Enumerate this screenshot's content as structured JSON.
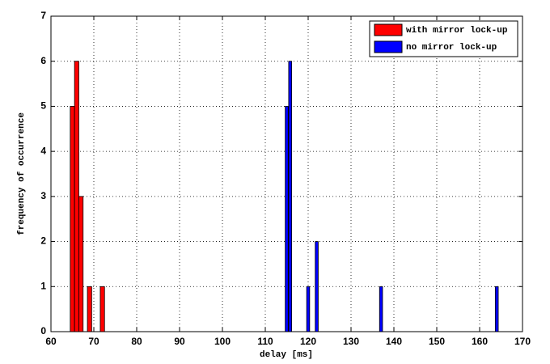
{
  "chart_data": {
    "type": "bar",
    "xlabel": "delay [ms]",
    "ylabel": "frequency of occurrence",
    "xlim": [
      60,
      170
    ],
    "xticks": [
      60,
      70,
      80,
      90,
      100,
      110,
      120,
      130,
      140,
      150,
      160,
      170
    ],
    "ylim": [
      0,
      7
    ],
    "yticks": [
      0,
      1,
      2,
      3,
      4,
      5,
      6,
      7
    ],
    "grid": true,
    "legend": "upper right",
    "series": [
      {
        "name": "with mirror lock-up",
        "color": "#ff0000",
        "x": [
          65,
          66,
          67,
          69,
          72
        ],
        "values": [
          5,
          6,
          3,
          1,
          1
        ]
      },
      {
        "name": "no mirror lock-up",
        "color": "#0000ff",
        "x": [
          115,
          115.8,
          120,
          122,
          137,
          164
        ],
        "values": [
          5,
          6,
          1,
          2,
          1,
          1
        ]
      }
    ]
  }
}
